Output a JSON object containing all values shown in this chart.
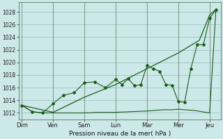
{
  "background_color": "#cce8e8",
  "plot_bg_color": "#cce8e8",
  "grid_color": "#99bbbb",
  "line_color": "#1a5c1a",
  "xlabel": "Pression niveau de la mer( hPa )",
  "ylim": [
    1011.0,
    1029.5
  ],
  "yticks": [
    1012,
    1014,
    1016,
    1018,
    1020,
    1022,
    1024,
    1026,
    1028
  ],
  "days": [
    "Dim",
    "Ven",
    "Sam",
    "Lun",
    "Mar",
    "Mer",
    "Jeu"
  ],
  "day_x": [
    0,
    1,
    2,
    3,
    4,
    5,
    6
  ],
  "s1_x": [
    0.0,
    0.33,
    0.67,
    1.0,
    1.33,
    1.67,
    2.0,
    2.33,
    2.67,
    3.0,
    3.2,
    3.4,
    3.6,
    3.8,
    4.0,
    4.2,
    4.4,
    4.6,
    4.8,
    5.0,
    5.2,
    5.4,
    5.6,
    5.8,
    6.0,
    6.2
  ],
  "s1_y": [
    1013.2,
    1012.2,
    1012.0,
    1013.5,
    1014.8,
    1015.2,
    1016.8,
    1016.9,
    1016.0,
    1017.3,
    1016.5,
    1017.4,
    1016.3,
    1016.5,
    1019.5,
    1019.0,
    1018.6,
    1016.5,
    1016.4,
    1013.8,
    1013.7,
    1019.0,
    1022.8,
    1022.8,
    1027.0,
    1028.3
  ],
  "s2_x": [
    0.0,
    1.0,
    2.0,
    3.0,
    4.0,
    5.0,
    5.67,
    6.0,
    6.2
  ],
  "s2_y": [
    1013.2,
    1012.1,
    1014.5,
    1016.5,
    1019.0,
    1021.5,
    1023.5,
    1027.5,
    1028.4
  ],
  "s3_x": [
    0.0,
    0.33,
    0.67,
    1.0,
    1.5,
    2.0,
    2.5,
    3.0,
    3.5,
    4.0,
    4.5,
    4.8,
    5.0,
    5.2,
    5.5,
    6.0,
    6.2
  ],
  "s3_y": [
    1013.2,
    1012.2,
    1012.0,
    1012.0,
    1012.0,
    1012.0,
    1012.1,
    1012.1,
    1012.2,
    1012.3,
    1012.5,
    1012.5,
    1012.6,
    1012.5,
    1012.4,
    1012.0,
    1028.3
  ]
}
